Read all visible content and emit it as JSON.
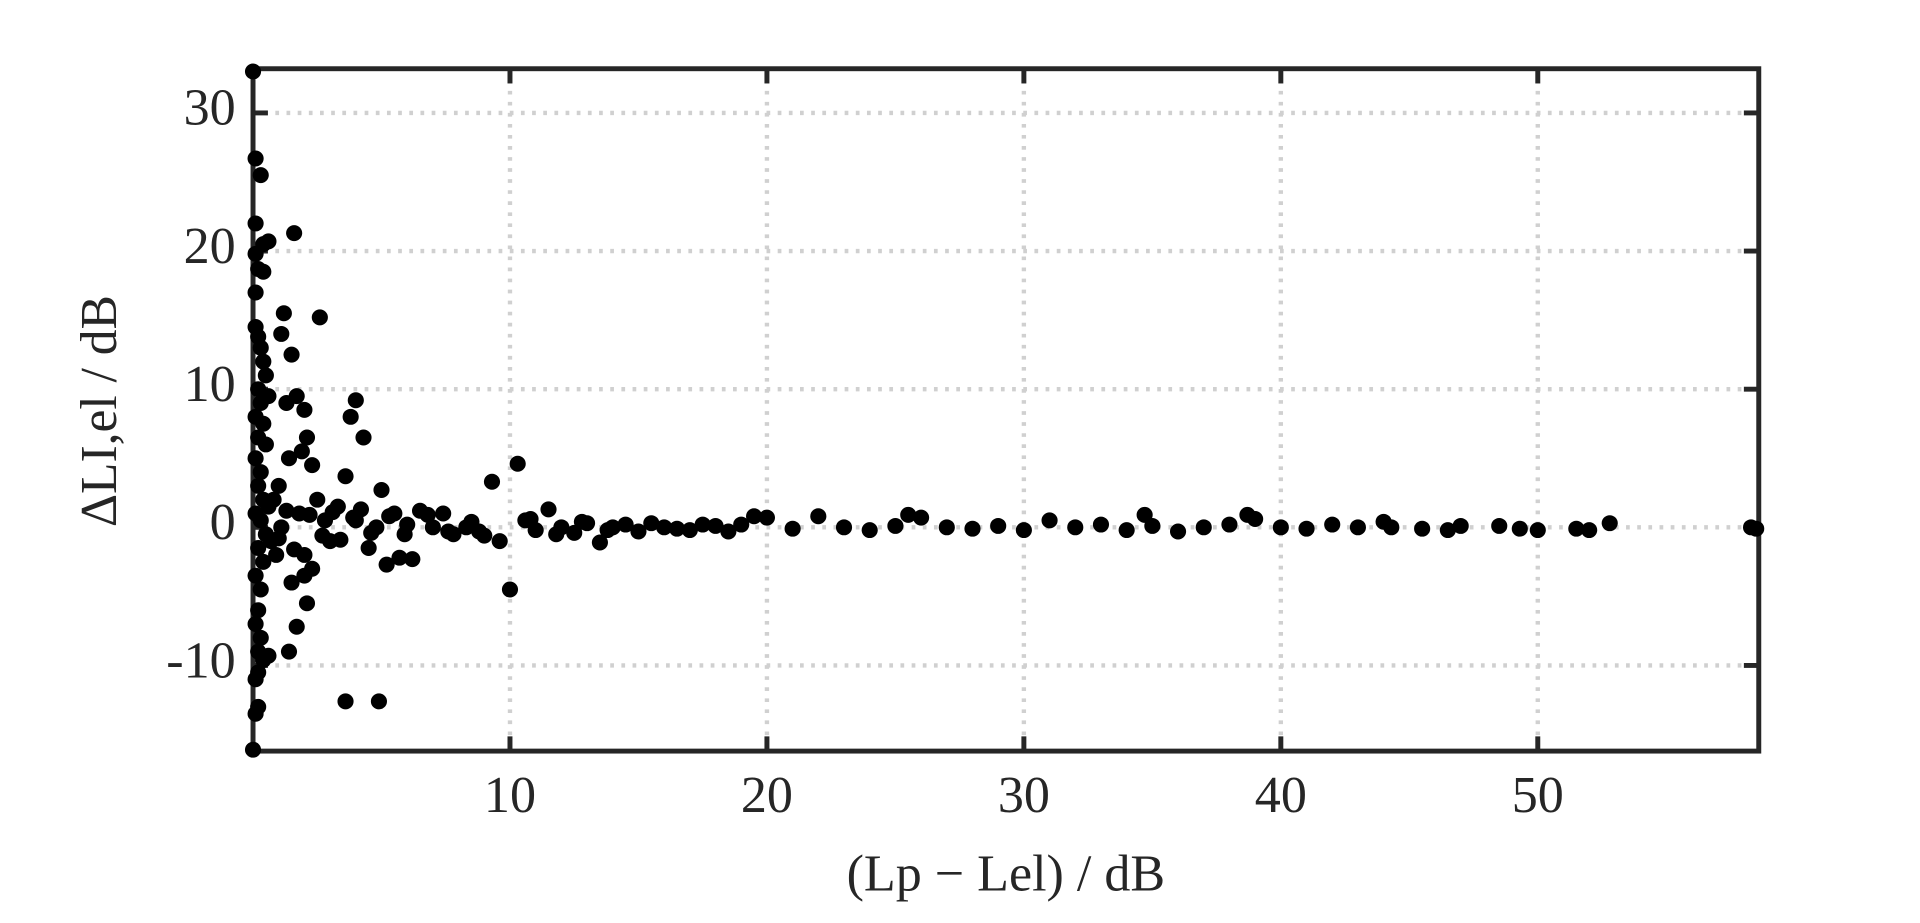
{
  "chart_data": {
    "type": "scatter",
    "x_label": "(Lp − Lel) / dB",
    "y_label": "ΔLI,el / dB",
    "xlim": [
      0,
      58.6
    ],
    "ylim": [
      -16.2,
      33.2
    ],
    "xticks": [
      10,
      20,
      30,
      40,
      50
    ],
    "yticks": [
      -10,
      0,
      10,
      20,
      30
    ],
    "grid": true,
    "color": "#000000",
    "x": [
      0,
      0,
      0.1,
      0.3,
      0.1,
      0.4,
      0.6,
      0.1,
      0.2,
      0.4,
      0.1,
      0.1,
      0.2,
      0.3,
      0.4,
      0.5,
      0.2,
      0.3,
      0.6,
      0.1,
      0.4,
      0.2,
      0.5,
      0.1,
      0.3,
      0.2,
      0.4,
      0.1,
      0.3,
      0.5,
      0.2,
      0.4,
      0.1,
      0.3,
      0.2,
      0.1,
      0.3,
      0.2,
      0.4,
      0.6,
      0.2,
      0.1,
      0.2,
      0.1,
      0.7,
      0.8,
      0.9,
      1.0,
      1.1,
      1.2,
      1.1,
      1.4,
      1.5,
      1.4,
      1.3,
      1.6,
      1.5,
      1.7,
      2.0,
      2.1,
      1.9,
      1.8,
      2.0,
      1.7,
      2.1,
      2.0,
      2.3,
      2.5,
      2.6,
      2.3,
      2.8,
      3.0,
      3.3,
      3.6,
      3.6,
      3.8,
      4.0,
      4.3,
      4.0,
      4.5,
      4.8,
      4.9,
      5.0,
      5.2,
      5.5,
      5.7,
      6.0,
      6.2,
      6.5,
      7.0,
      7.4,
      7.8,
      8.3,
      8.8,
      9.3,
      9.6,
      10.0,
      10.3,
      10.6,
      11.0,
      11.5,
      12,
      12.5,
      13,
      13.5,
      14,
      14.5,
      15,
      16,
      17,
      18,
      19,
      19.5,
      20,
      21,
      22,
      23,
      24,
      25,
      25.5,
      26,
      27,
      28,
      29,
      30,
      31,
      32,
      33,
      34,
      34.7,
      35,
      36,
      37,
      38,
      38.7,
      39,
      40,
      41,
      42,
      43,
      44,
      44.3,
      45.5,
      46.5,
      47,
      48.5,
      49.3,
      50,
      51.5,
      52,
      52.8,
      58.3,
      58.5,
      0.6,
      1.0,
      1.3,
      1.6,
      2.2,
      2.7,
      3.1,
      3.4,
      3.9,
      4.2,
      4.6,
      5.3,
      5.9,
      6.8,
      7.6,
      8.5,
      9.0,
      10.8,
      11.8,
      12.8,
      13.8,
      15.5,
      16.5,
      17.5,
      18.5
    ],
    "values": [
      33,
      -16.1,
      26.7,
      25.5,
      22,
      20.5,
      20.7,
      19.8,
      18.7,
      18.5,
      17,
      14.5,
      13.8,
      13,
      12,
      11,
      10,
      9,
      9.5,
      8,
      7.5,
      6.5,
      6,
      5,
      4,
      3,
      2,
      1,
      0.5,
      -0.5,
      -1.5,
      -2.5,
      -3.5,
      -4.5,
      -6,
      -7,
      -8,
      -9,
      -9.6,
      -9.3,
      -10.5,
      -11,
      -13,
      -13.5,
      -1,
      2,
      -2,
      3,
      0,
      15.5,
      14,
      -9,
      -4,
      5,
      9,
      21.3,
      12.5,
      9.5,
      8.5,
      6.5,
      5.5,
      1,
      -2,
      -7.2,
      -5.5,
      -3.5,
      -3,
      2,
      15.2,
      4.5,
      0.5,
      -1,
      1.5,
      3.7,
      -12.6,
      8,
      9.2,
      6.5,
      0.5,
      -1.5,
      0,
      -12.6,
      2.7,
      -2.7,
      1,
      -2.2,
      0.2,
      -2.3,
      1.2,
      0,
      1,
      -0.5,
      0,
      -0.3,
      3.3,
      -1,
      -4.5,
      4.6,
      0.5,
      -0.2,
      1.3,
      0,
      -0.4,
      0.3,
      -1.1,
      0,
      0.2,
      -0.3,
      0,
      -0.2,
      0.1,
      0.2,
      0.8,
      0.7,
      -0.1,
      0.8,
      0,
      -0.2,
      0.1,
      0.9,
      0.7,
      0,
      -0.1,
      0.1,
      -0.2,
      0.5,
      0,
      0.2,
      -0.2,
      0.9,
      0.1,
      -0.3,
      0,
      0.2,
      0.9,
      0.6,
      0,
      -0.1,
      0.2,
      0,
      0.4,
      0,
      -0.1,
      -0.2,
      0.1,
      0.1,
      -0.1,
      -0.2,
      -0.1,
      -0.2,
      0.3,
      0,
      -0.1,
      1.5,
      -0.8,
      1.2,
      -1.6,
      0.9,
      -0.6,
      1.1,
      -0.9,
      0.7,
      1.3,
      -0.4,
      0.8,
      -0.5,
      0.9,
      -0.3,
      0.4,
      -0.6,
      0.6,
      -0.5,
      0.4,
      -0.2,
      0.3,
      -0.1,
      0.2,
      -0.3
    ]
  }
}
